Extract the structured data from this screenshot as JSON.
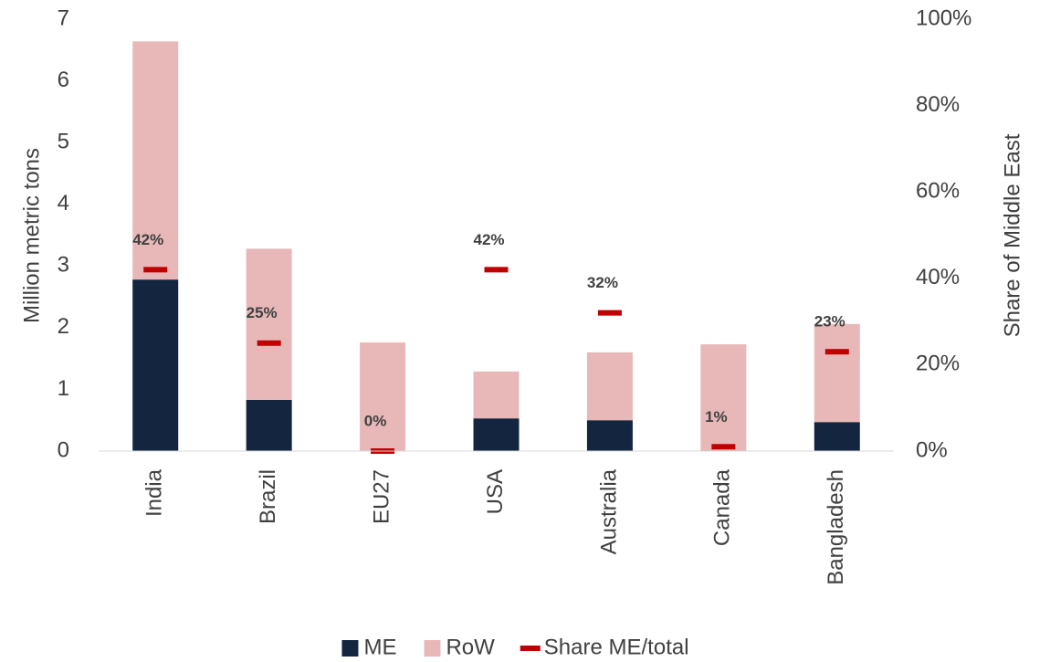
{
  "chart_data": {
    "type": "bar",
    "stacked": true,
    "categories": [
      "India",
      "Brazil",
      "EU27",
      "USA",
      "Australia",
      "Canada",
      "Bangladesh"
    ],
    "series": [
      {
        "name": "ME",
        "color": "#13253f",
        "values": [
          2.78,
          0.83,
          0,
          0.53,
          0.5,
          0.01,
          0.47
        ]
      },
      {
        "name": "RoW",
        "color": "#e8b8b9",
        "values": [
          3.86,
          2.45,
          1.76,
          0.76,
          1.1,
          1.72,
          1.59
        ]
      },
      {
        "name": "Share ME/total",
        "type": "marker",
        "axis": "y2",
        "color": "#c00000",
        "values": [
          42,
          25,
          0,
          42,
          32,
          1,
          23
        ],
        "value_labels": [
          "42%",
          "25%",
          "0%",
          "42%",
          "32%",
          "1%",
          "23%"
        ]
      }
    ],
    "ylabel": "Million metric tons",
    "y2label": "Share of Middle East",
    "ylim": [
      0,
      7
    ],
    "yticks": [
      0,
      1,
      2,
      3,
      4,
      5,
      6,
      7
    ],
    "y2lim": [
      0,
      100
    ],
    "y2ticks": [
      {
        "value": 0,
        "label": "0%"
      },
      {
        "value": 20,
        "label": "20%"
      },
      {
        "value": 40,
        "label": "40%"
      },
      {
        "value": 60,
        "label": "60%"
      },
      {
        "value": 80,
        "label": "80%"
      },
      {
        "value": 100,
        "label": "100%"
      }
    ],
    "legend": "bottom"
  }
}
